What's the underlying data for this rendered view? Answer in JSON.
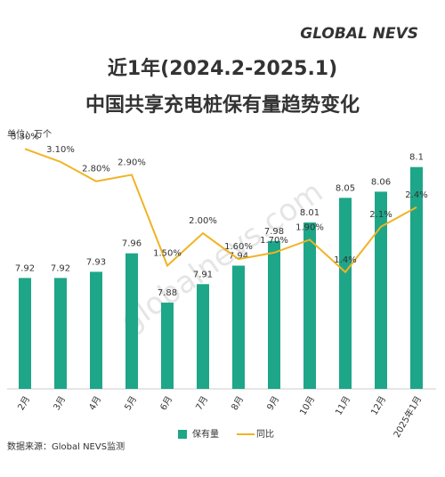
{
  "brand": "GLOBAL NEVS",
  "watermark": "globalnevs.com",
  "chart_data": {
    "type": "bar",
    "title": "近1年(2024.2-2025.1)",
    "subtitle": "中国共享充电桩保有量趋势变化",
    "unit_label": "单位：万个",
    "source": "数据来源：Global NEVS监测",
    "categories": [
      "2月",
      "3月",
      "4月",
      "5月",
      "6月",
      "7月",
      "8月",
      "9月",
      "10月",
      "11月",
      "12月",
      "2025年1月"
    ],
    "series": [
      {
        "name": "保有量",
        "type": "bar",
        "color": "#1ea689",
        "values": [
          7.92,
          7.92,
          7.93,
          7.96,
          7.88,
          7.91,
          7.94,
          7.98,
          8.01,
          8.05,
          8.06,
          8.1
        ]
      },
      {
        "name": "同比",
        "type": "line",
        "axis": "y2",
        "color": "#f0b323",
        "values": [
          3.3,
          3.1,
          2.8,
          2.9,
          1.5,
          2.0,
          1.6,
          1.7,
          1.9,
          1.4,
          2.1,
          2.4
        ],
        "value_labels": [
          "3.30%",
          "3.10%",
          "2.80%",
          "2.90%",
          "1.50%",
          "2.00%",
          "1.60%",
          "1.70%",
          "1.90%",
          "1.4%",
          "2.1%",
          "2.4%"
        ]
      }
    ],
    "ylim": [
      7.74,
      8.14
    ],
    "y2lim": [
      -0.4,
      3.4
    ],
    "grid": false
  }
}
